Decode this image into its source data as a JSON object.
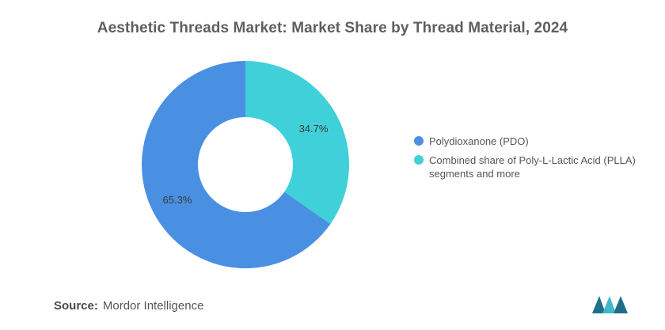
{
  "chart_data": {
    "type": "pie",
    "style": "donut",
    "title": "Aesthetic Threads Market: Market Share by Thread Material, 2024",
    "categories": [
      "Polydioxanone (PDO)",
      "Combined share of Poly-L-Lactic Acid (PLLA) segments and more"
    ],
    "values": [
      65.3,
      34.7
    ],
    "labels": [
      "65.3%",
      "34.7%"
    ],
    "colors": [
      "#4a90e2",
      "#40d0d9"
    ],
    "legend_position": "right"
  },
  "source": {
    "label": "Source:",
    "value": "Mordor Intelligence"
  },
  "logo": {
    "icon": "mordor-intelligence-logo-icon",
    "colors": [
      "#1f6f8b",
      "#3fb8c9"
    ]
  }
}
